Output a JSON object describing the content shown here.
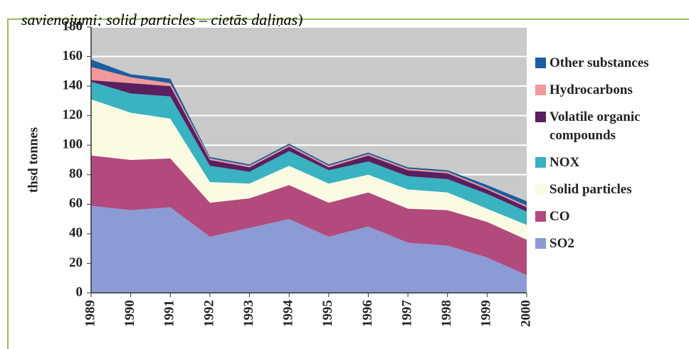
{
  "chart_data": {
    "type": "stacked-area",
    "caption": "savienojumi; solid particles – cietās daļiņas)",
    "y_label": "thsd tonnes",
    "categories": [
      "1989",
      "1990",
      "1991",
      "1992",
      "1993",
      "1994",
      "1995",
      "1996",
      "1997",
      "1998",
      "1999",
      "2000"
    ],
    "ylim": [
      0,
      180
    ],
    "yticks": [
      0,
      20,
      40,
      60,
      80,
      100,
      120,
      140,
      160,
      180
    ],
    "grid": true,
    "series": [
      {
        "name": "SO2",
        "color": "#8c9bd3",
        "values": [
          59,
          56,
          58,
          38,
          44,
          50,
          38,
          45,
          34,
          32,
          24,
          12
        ]
      },
      {
        "name": "CO",
        "color": "#b24a7d",
        "values": [
          34,
          34,
          33,
          23,
          20,
          23,
          23,
          23,
          23,
          24,
          24,
          24
        ]
      },
      {
        "name": "Solid particles",
        "color": "#fbfbe4",
        "values": [
          38,
          32,
          27,
          14,
          10,
          13,
          13,
          12,
          13,
          12,
          9,
          10
        ]
      },
      {
        "name": "NOX",
        "color": "#39b2c1",
        "values": [
          12,
          13,
          15,
          11,
          8,
          10,
          9,
          9,
          9,
          9,
          10,
          9
        ]
      },
      {
        "name": "Volatile organic compounds",
        "color": "#5a1f5e",
        "values": [
          1,
          7,
          7,
          4,
          3,
          3,
          2,
          4,
          4,
          4,
          3,
          3
        ]
      },
      {
        "name": "Hydrocarbons",
        "color": "#f2999e",
        "values": [
          9,
          4,
          2,
          1,
          1,
          1,
          1,
          1,
          1,
          1,
          1,
          1
        ]
      },
      {
        "name": "Other substances",
        "color": "#1b5e9e",
        "values": [
          5,
          2,
          3,
          1,
          1,
          1,
          1,
          1,
          1,
          1,
          2,
          3
        ]
      }
    ]
  }
}
